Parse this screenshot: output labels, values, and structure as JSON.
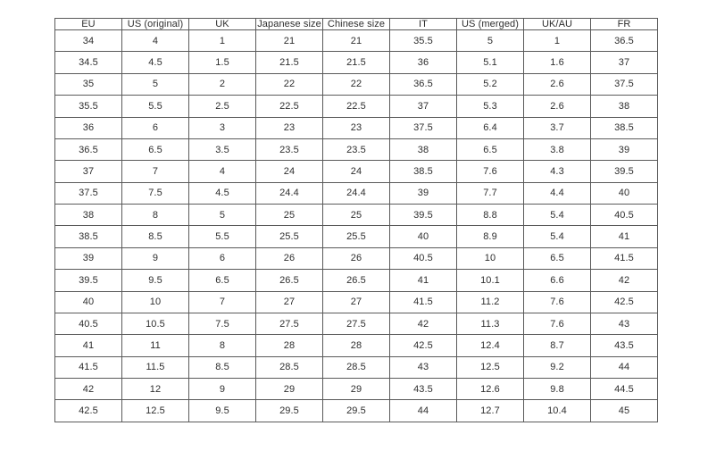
{
  "table": {
    "name": "shoe-size-conversion-table",
    "headers": [
      "EU",
      "US (original)",
      "UK",
      "Japanese size",
      "Chinese size",
      "IT",
      "US (merged)",
      "UK/AU",
      "FR"
    ],
    "rows": [
      [
        "34",
        "4",
        "1",
        "21",
        "21",
        "35.5",
        "5",
        "1",
        "36.5"
      ],
      [
        "34.5",
        "4.5",
        "1.5",
        "21.5",
        "21.5",
        "36",
        "5.1",
        "1.6",
        "37"
      ],
      [
        "35",
        "5",
        "2",
        "22",
        "22",
        "36.5",
        "5.2",
        "2.6",
        "37.5"
      ],
      [
        "35.5",
        "5.5",
        "2.5",
        "22.5",
        "22.5",
        "37",
        "5.3",
        "2.6",
        "38"
      ],
      [
        "36",
        "6",
        "3",
        "23",
        "23",
        "37.5",
        "6.4",
        "3.7",
        "38.5"
      ],
      [
        "36.5",
        "6.5",
        "3.5",
        "23.5",
        "23.5",
        "38",
        "6.5",
        "3.8",
        "39"
      ],
      [
        "37",
        "7",
        "4",
        "24",
        "24",
        "38.5",
        "7.6",
        "4.3",
        "39.5"
      ],
      [
        "37.5",
        "7.5",
        "4.5",
        "24.4",
        "24.4",
        "39",
        "7.7",
        "4.4",
        "40"
      ],
      [
        "38",
        "8",
        "5",
        "25",
        "25",
        "39.5",
        "8.8",
        "5.4",
        "40.5"
      ],
      [
        "38.5",
        "8.5",
        "5.5",
        "25.5",
        "25.5",
        "40",
        "8.9",
        "5.4",
        "41"
      ],
      [
        "39",
        "9",
        "6",
        "26",
        "26",
        "40.5",
        "10",
        "6.5",
        "41.5"
      ],
      [
        "39.5",
        "9.5",
        "6.5",
        "26.5",
        "26.5",
        "41",
        "10.1",
        "6.6",
        "42"
      ],
      [
        "40",
        "10",
        "7",
        "27",
        "27",
        "41.5",
        "11.2",
        "7.6",
        "42.5"
      ],
      [
        "40.5",
        "10.5",
        "7.5",
        "27.5",
        "27.5",
        "42",
        "11.3",
        "7.6",
        "43"
      ],
      [
        "41",
        "11",
        "8",
        "28",
        "28",
        "42.5",
        "12.4",
        "8.7",
        "43.5"
      ],
      [
        "41.5",
        "11.5",
        "8.5",
        "28.5",
        "28.5",
        "43",
        "12.5",
        "9.2",
        "44"
      ],
      [
        "42",
        "12",
        "9",
        "29",
        "29",
        "43.5",
        "12.6",
        "9.8",
        "44.5"
      ],
      [
        "42.5",
        "12.5",
        "9.5",
        "29.5",
        "29.5",
        "44",
        "12.7",
        "10.4",
        "45"
      ]
    ],
    "border_color": "#5a5a5a",
    "text_color": "#2e2e2e",
    "background_color": "#ffffff"
  }
}
